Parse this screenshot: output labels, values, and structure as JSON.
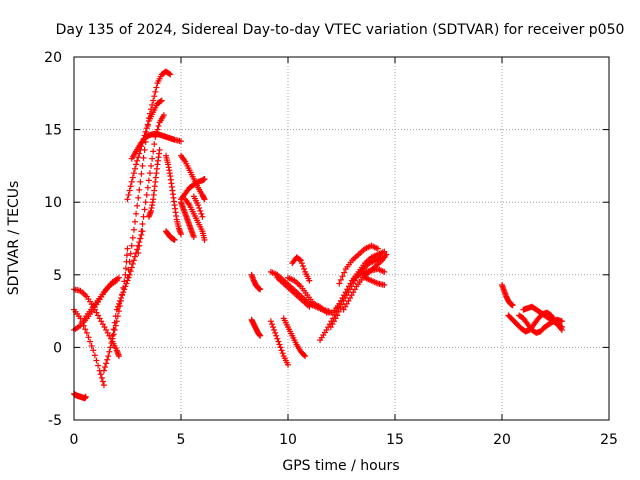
{
  "chart_data": {
    "type": "scatter",
    "title": "Day 135 of 2024, Sidereal Day-to-day VTEC variation (SDTVAR) for receiver p050",
    "xlabel": "GPS time / hours",
    "ylabel": "SDTVAR / TECUs",
    "xlim": [
      0,
      25
    ],
    "ylim": [
      -5,
      20
    ],
    "xticks": [
      0,
      5,
      10,
      15,
      20,
      25
    ],
    "yticks": [
      -5,
      0,
      5,
      10,
      15,
      20
    ],
    "grid": true,
    "marker": "+",
    "color": "#ff0000",
    "series": [
      {
        "name": "SDTVAR",
        "segments": [
          {
            "x": [
              0.0,
              0.1,
              0.2,
              0.3,
              0.4,
              0.5,
              0.55
            ],
            "y": [
              -3.2,
              -3.3,
              -3.35,
              -3.4,
              -3.45,
              -3.5,
              -3.4
            ]
          },
          {
            "x": [
              0.0,
              0.3,
              0.6,
              0.9,
              1.2,
              1.5,
              1.8,
              2.0,
              2.1
            ],
            "y": [
              4.0,
              3.9,
              3.5,
              2.8,
              2.0,
              1.2,
              0.4,
              -0.2,
              -0.6
            ]
          },
          {
            "x": [
              0.0,
              0.3,
              0.6,
              0.9,
              1.2,
              1.4
            ],
            "y": [
              2.6,
              2.0,
              1.0,
              -0.2,
              -1.6,
              -2.6
            ]
          },
          {
            "x": [
              0.0,
              0.3,
              0.6,
              0.9,
              1.2,
              1.5,
              1.8,
              2.1
            ],
            "y": [
              1.2,
              1.5,
              2.0,
              2.6,
              3.3,
              4.0,
              4.5,
              4.8
            ]
          },
          {
            "x": [
              0.5,
              0.8,
              1.1,
              1.4,
              1.7,
              2.0
            ],
            "y": [
              2.0,
              2.6,
              3.2,
              3.8,
              4.3,
              4.6
            ]
          },
          {
            "x": [
              1.4,
              1.6,
              1.8,
              2.0,
              2.2,
              2.4,
              2.5
            ],
            "y": [
              -1.6,
              -0.6,
              0.6,
              1.8,
              3.2,
              5.0,
              6.8
            ]
          },
          {
            "x": [
              1.8,
              2.0,
              2.2,
              2.4,
              2.6,
              2.8,
              3.0,
              3.2
            ],
            "y": [
              0.8,
              2.6,
              3.4,
              4.2,
              5.0,
              6.0,
              7.0,
              8.0
            ]
          },
          {
            "x": [
              2.5,
              2.7,
              2.9,
              3.1,
              3.3,
              3.5,
              3.7,
              3.9,
              4.1,
              4.3,
              4.5
            ],
            "y": [
              4.8,
              7.0,
              9.2,
              11.4,
              13.6,
              15.8,
              17.0,
              18.2,
              18.8,
              19.0,
              18.8
            ]
          },
          {
            "x": [
              2.5,
              2.7,
              2.9,
              3.1,
              3.3,
              3.5,
              3.7,
              3.9,
              4.1
            ],
            "y": [
              10.2,
              11.4,
              12.6,
              13.6,
              14.6,
              15.6,
              16.2,
              16.8,
              17.0
            ]
          },
          {
            "x": [
              3.0,
              3.2,
              3.4,
              3.6,
              3.8,
              4.0,
              4.2
            ],
            "y": [
              6.5,
              8.5,
              10.5,
              12.5,
              14.5,
              15.5,
              16.0
            ]
          },
          {
            "x": [
              2.7,
              2.9,
              3.1,
              3.3,
              3.5,
              3.7,
              3.9,
              4.1,
              4.3,
              4.5,
              4.7,
              5.0
            ],
            "y": [
              13.0,
              13.5,
              14.0,
              14.4,
              14.6,
              14.7,
              14.7,
              14.6,
              14.5,
              14.4,
              14.3,
              14.2
            ]
          },
          {
            "x": [
              3.5,
              3.6,
              3.7,
              3.8,
              3.9,
              4.0
            ],
            "y": [
              9.0,
              9.4,
              10.2,
              11.4,
              12.6,
              13.6
            ]
          },
          {
            "x": [
              4.3,
              4.4,
              4.5,
              4.6,
              4.7,
              4.8,
              4.9,
              5.0
            ],
            "y": [
              13.2,
              12.6,
              11.8,
              10.8,
              9.8,
              8.8,
              8.2,
              7.8
            ]
          },
          {
            "x": [
              4.3,
              4.4,
              4.5,
              4.6,
              4.7
            ],
            "y": [
              8.0,
              7.8,
              7.6,
              7.5,
              7.4
            ]
          },
          {
            "x": [
              5.0,
              5.2,
              5.4,
              5.6,
              5.8,
              6.0,
              6.1
            ],
            "y": [
              13.2,
              12.8,
              12.2,
              11.6,
              11.0,
              10.5,
              10.2
            ]
          },
          {
            "x": [
              5.0,
              5.2,
              5.4,
              5.6,
              5.8,
              6.0,
              6.1
            ],
            "y": [
              10.2,
              10.6,
              11.0,
              11.2,
              11.4,
              11.5,
              11.6
            ]
          },
          {
            "x": [
              5.2,
              5.4,
              5.6,
              5.8,
              6.0,
              6.1
            ],
            "y": [
              10.2,
              9.8,
              9.2,
              8.6,
              8.0,
              7.4
            ]
          },
          {
            "x": [
              5.0,
              5.1,
              5.2,
              5.3,
              5.4,
              5.5,
              5.6
            ],
            "y": [
              10.0,
              9.6,
              9.2,
              8.8,
              8.4,
              8.0,
              7.6
            ]
          },
          {
            "x": [
              5.6,
              5.8,
              6.0
            ],
            "y": [
              10.4,
              9.8,
              9.0
            ]
          },
          {
            "x": [
              8.3,
              8.4,
              8.5,
              8.6,
              8.7
            ],
            "y": [
              5.0,
              4.6,
              4.3,
              4.1,
              4.0
            ]
          },
          {
            "x": [
              8.3,
              8.4,
              8.5,
              8.6,
              8.7
            ],
            "y": [
              1.9,
              1.6,
              1.3,
              1.0,
              0.8
            ]
          },
          {
            "x": [
              9.2,
              9.4,
              9.6,
              9.8,
              10.0
            ],
            "y": [
              1.8,
              1.0,
              0.2,
              -0.6,
              -1.2
            ]
          },
          {
            "x": [
              9.8,
              10.0,
              10.2,
              10.4,
              10.6,
              10.8
            ],
            "y": [
              2.0,
              1.4,
              0.8,
              0.2,
              -0.3,
              -0.6
            ]
          },
          {
            "x": [
              9.2,
              9.5,
              9.8,
              10.1,
              10.4,
              10.7,
              11.0,
              11.3,
              11.6,
              11.9
            ],
            "y": [
              5.2,
              5.0,
              4.6,
              4.2,
              3.8,
              3.4,
              3.0,
              2.8,
              2.6,
              2.5
            ]
          },
          {
            "x": [
              9.5,
              9.8,
              10.1,
              10.4,
              10.7,
              11.0
            ],
            "y": [
              4.8,
              4.4,
              4.0,
              3.6,
              3.2,
              2.8
            ]
          },
          {
            "x": [
              10.2,
              10.4,
              10.6,
              10.8,
              11.0
            ],
            "y": [
              5.8,
              6.2,
              6.0,
              5.2,
              4.6
            ]
          },
          {
            "x": [
              10.0,
              10.3,
              10.6,
              10.9,
              11.2
            ],
            "y": [
              4.8,
              4.6,
              4.2,
              3.6,
              3.0
            ]
          },
          {
            "x": [
              11.2,
              11.5,
              11.8,
              12.1,
              12.4,
              12.7,
              13.0,
              13.3,
              13.6,
              13.9,
              14.2,
              14.5
            ],
            "y": [
              3.0,
              2.8,
              2.4,
              2.4,
              3.0,
              3.8,
              4.6,
              5.0,
              5.2,
              5.3,
              5.4,
              5.2
            ]
          },
          {
            "x": [
              11.5,
              11.8,
              12.1,
              12.4,
              12.7,
              13.0,
              13.3,
              13.6,
              13.9,
              14.2,
              14.5
            ],
            "y": [
              0.5,
              1.2,
              2.0,
              3.0,
              3.8,
              4.6,
              5.2,
              5.8,
              6.2,
              6.4,
              6.6
            ]
          },
          {
            "x": [
              12.4,
              12.7,
              13.0,
              13.3,
              13.6,
              13.9,
              14.2
            ],
            "y": [
              4.4,
              5.4,
              6.0,
              6.4,
              6.8,
              7.0,
              6.8
            ]
          },
          {
            "x": [
              12.0,
              12.3,
              12.6,
              12.9,
              13.2,
              13.5,
              13.8,
              14.1,
              14.4
            ],
            "y": [
              1.4,
              2.2,
              3.2,
              4.0,
              4.8,
              5.4,
              5.8,
              6.0,
              6.2
            ]
          },
          {
            "x": [
              12.6,
              12.9,
              13.2,
              13.5,
              13.8,
              14.1,
              14.4,
              14.6
            ],
            "y": [
              2.6,
              3.4,
              4.2,
              4.8,
              5.2,
              5.6,
              6.0,
              6.4
            ]
          },
          {
            "x": [
              13.6,
              13.9,
              14.2,
              14.5
            ],
            "y": [
              4.8,
              4.6,
              4.4,
              4.3
            ]
          },
          {
            "x": [
              20.0,
              20.1,
              20.2,
              20.3,
              20.4,
              20.5
            ],
            "y": [
              4.3,
              3.9,
              3.5,
              3.2,
              3.0,
              2.9
            ]
          },
          {
            "x": [
              20.3,
              20.5,
              20.7,
              20.9,
              21.1,
              21.3,
              21.5,
              21.7,
              21.9,
              22.1,
              22.3,
              22.5,
              22.7
            ],
            "y": [
              2.2,
              1.9,
              1.6,
              1.3,
              1.1,
              1.2,
              1.6,
              2.0,
              2.3,
              2.4,
              2.2,
              1.8,
              1.4
            ]
          },
          {
            "x": [
              20.8,
              21.0,
              21.2,
              21.4,
              21.6,
              21.8,
              22.0,
              22.2,
              22.4,
              22.6,
              22.8
            ],
            "y": [
              2.2,
              2.0,
              1.6,
              1.2,
              1.0,
              1.1,
              1.4,
              1.6,
              1.8,
              1.9,
              1.8
            ]
          },
          {
            "x": [
              21.0,
              21.2,
              21.4,
              21.6,
              21.8,
              22.0,
              22.2,
              22.4,
              22.6,
              22.8
            ],
            "y": [
              2.6,
              2.7,
              2.8,
              2.6,
              2.4,
              2.2,
              2.0,
              1.8,
              1.6,
              1.4
            ]
          },
          {
            "x": [
              22.0,
              22.2,
              22.4,
              22.6,
              22.8
            ],
            "y": [
              2.3,
              2.2,
              2.0,
              1.6,
              1.2
            ]
          }
        ]
      }
    ]
  }
}
